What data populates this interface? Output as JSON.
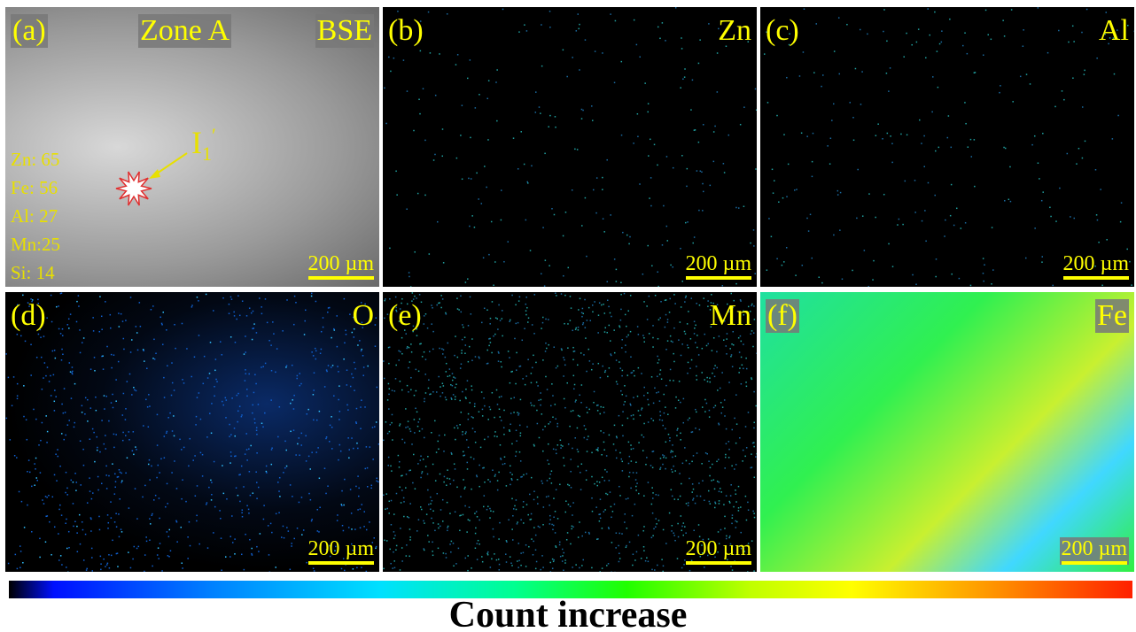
{
  "panels": [
    {
      "label": "(a)",
      "tag": "Zone A",
      "title": "BSE",
      "scale_bar": "200 µm",
      "annotation": {
        "text": "I",
        "subscript": "1",
        "prime": "′"
      },
      "composition": [
        "Zn: 65",
        "Fe: 56",
        "Al: 27",
        "Mn:25",
        "Si: 14"
      ]
    },
    {
      "label": "(b)",
      "title": "Zn",
      "scale_bar": "200 µm"
    },
    {
      "label": "(c)",
      "title": "Al",
      "scale_bar": "200 µm"
    },
    {
      "label": "(d)",
      "title": "O",
      "scale_bar": "200 µm"
    },
    {
      "label": "(e)",
      "title": "Mn",
      "scale_bar": "200 µm"
    },
    {
      "label": "(f)",
      "title": "Fe",
      "scale_bar": "200 µm"
    }
  ],
  "colorbar": {
    "label": "Count increase"
  }
}
